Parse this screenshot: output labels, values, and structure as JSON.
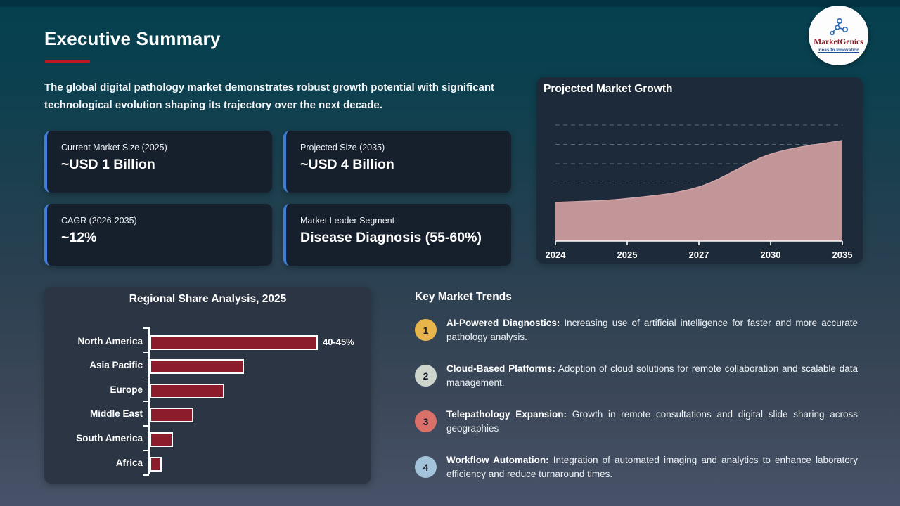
{
  "slide": {
    "title": "Executive Summary",
    "intro": "The global digital pathology market demonstrates robust growth potential with significant technological evolution shaping its trajectory over the next decade.",
    "accent_red": "#bf1722",
    "accent_blue": "#3d7cd9"
  },
  "logo": {
    "name": "MarketGenics",
    "tagline": "Ideas to Innovation",
    "icon": "molecule-network-icon",
    "name_color": "#8d1f2d",
    "tagline_color": "#1d4fa0"
  },
  "stats": [
    {
      "label": "Current Market Size (2025)",
      "value": "~USD 1 Billion"
    },
    {
      "label": "Projected Size (2035)",
      "value": "~USD 4 Billion"
    },
    {
      "label": "CAGR (2026-2035)",
      "value": "~12%"
    },
    {
      "label": "Market Leader Segment",
      "value": "Disease Diagnosis (55-60%)"
    }
  ],
  "chart_data": [
    {
      "type": "area",
      "title": "Projected Market Growth",
      "x": [
        "2024",
        "2025",
        "2027",
        "2030",
        "2035"
      ],
      "values": [
        1.0,
        1.1,
        1.4,
        2.25,
        2.6
      ],
      "note": "y-axis unlabeled; values estimated from dashed gridlines (approx USD billion)",
      "ylim": [
        0,
        3.15
      ],
      "gridlines": [
        0.5,
        1.0,
        1.5,
        2.0,
        2.5,
        3.0
      ],
      "grid_style": "dashed",
      "legend": "none",
      "area_color": "#c29599",
      "area_edge_color": "#d2a6a9",
      "axis_color": "#ffffff",
      "grid_color": "rgba(178,200,214,0.42)"
    },
    {
      "type": "bar",
      "orientation": "horizontal",
      "title": "Regional Share Analysis, 2025",
      "categories": [
        "North America",
        "Asia Pacific",
        "Europe",
        "Middle East",
        "South America",
        "Africa"
      ],
      "values": [
        42.5,
        23.5,
        18.5,
        10.5,
        5.2,
        2.4
      ],
      "unit": "%",
      "xlim": [
        0,
        45
      ],
      "data_labels": [
        "40-45%",
        "",
        "",
        "",
        "",
        ""
      ],
      "legend": "none",
      "bar_color": "#8c1b2c",
      "bar_border_color": "#ffffff"
    }
  ],
  "trends": {
    "heading": "Key Market Trends",
    "items": [
      {
        "num": "1",
        "color": "#e8b54b",
        "title": "AI-Powered Diagnostics:",
        "desc": "Increasing use of artificial intelligence for faster and more accurate pathology analysis."
      },
      {
        "num": "2",
        "color": "#cdd5cc",
        "title": "Cloud-Based Platforms:",
        "desc": "Adoption of cloud solutions for remote collaboration and scalable data management."
      },
      {
        "num": "3",
        "color": "#d9706a",
        "title": "Telepathology Expansion:",
        "desc": "Growth in remote consultations and digital slide sharing across geographies"
      },
      {
        "num": "4",
        "color": "#a3c3db",
        "title": "Workflow Automation:",
        "desc": "Integration of automated imaging and analytics to enhance laboratory efficiency and reduce turnaround times."
      }
    ]
  }
}
